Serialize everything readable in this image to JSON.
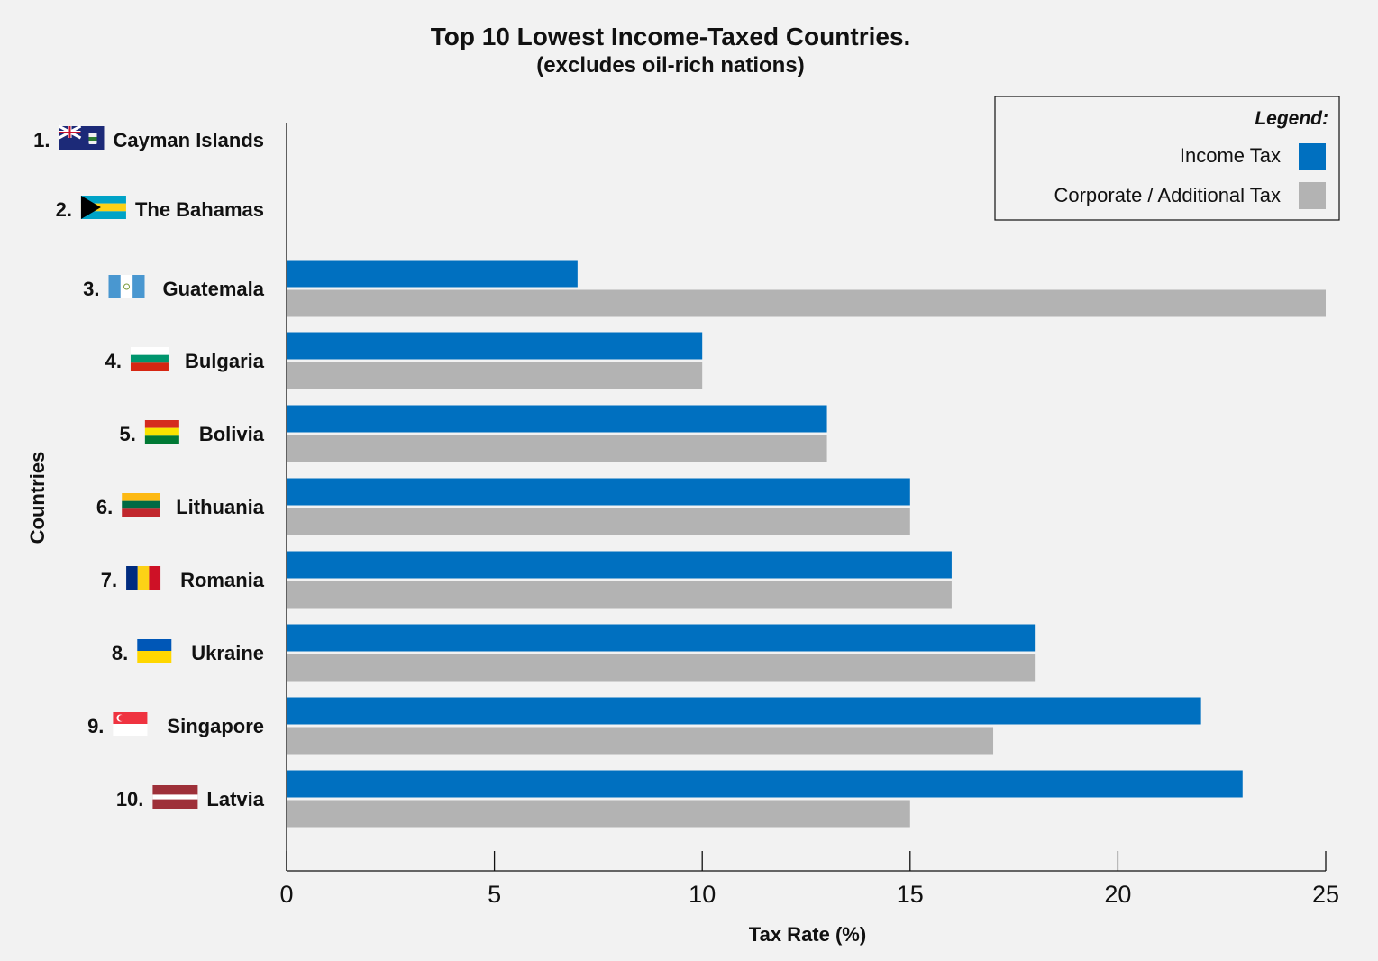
{
  "chart_data": {
    "type": "bar",
    "orientation": "horizontal",
    "title": "Top 10 Lowest Income-Taxed Countries.",
    "subtitle": "(excludes oil-rich nations)",
    "xlabel": "Tax Rate (%)",
    "ylabel": "Countries",
    "xlim": [
      0,
      25
    ],
    "xticks": [
      0,
      5,
      10,
      15,
      20,
      25
    ],
    "grid": false,
    "legend": {
      "title": "Legend:",
      "position": "top-right"
    },
    "categories": [
      {
        "rank": "1.",
        "name": "Cayman Islands",
        "flag": "cayman-islands-flag"
      },
      {
        "rank": "2.",
        "name": "The Bahamas",
        "flag": "bahamas-flag"
      },
      {
        "rank": "3.",
        "name": "Guatemala",
        "flag": "guatemala-flag"
      },
      {
        "rank": "4.",
        "name": "Bulgaria",
        "flag": "bulgaria-flag"
      },
      {
        "rank": "5.",
        "name": "Bolivia",
        "flag": "bolivia-flag"
      },
      {
        "rank": "6.",
        "name": "Lithuania",
        "flag": "lithuania-flag"
      },
      {
        "rank": "7.",
        "name": "Romania",
        "flag": "romania-flag"
      },
      {
        "rank": "8.",
        "name": "Ukraine",
        "flag": "ukraine-flag"
      },
      {
        "rank": "9.",
        "name": "Singapore",
        "flag": "singapore-flag"
      },
      {
        "rank": "10.",
        "name": "Latvia",
        "flag": "latvia-flag"
      }
    ],
    "series": [
      {
        "name": "Income Tax",
        "color": "#0070c0",
        "values": [
          0,
          0,
          7,
          10,
          13,
          15,
          16,
          18,
          22,
          23
        ]
      },
      {
        "name": "Corporate / Additional Tax",
        "color": "#b3b3b3",
        "values": [
          0,
          0,
          25,
          10,
          13,
          15,
          16,
          18,
          17,
          15
        ]
      }
    ]
  }
}
